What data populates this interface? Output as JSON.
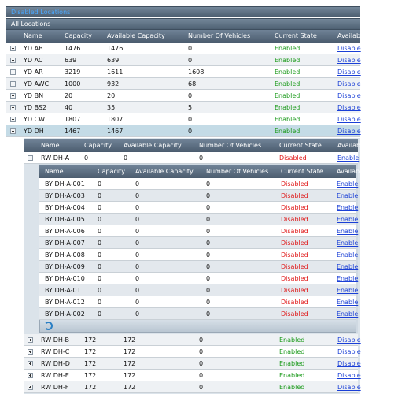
{
  "panels": {
    "disabled_locations": "Disabled Locations",
    "all_locations": "All Locations"
  },
  "locations_grid": {
    "columns": [
      "Name",
      "Capacity",
      "Available Capacity",
      "Number Of Vehicles",
      "Current State",
      "Available Action"
    ],
    "rows": [
      [
        "YD AB",
        1476,
        1476,
        0,
        "Enabled",
        "Disable"
      ],
      [
        "YD AC",
        639,
        639,
        0,
        "Enabled",
        "Disable"
      ],
      [
        "YD AR",
        3219,
        1611,
        1608,
        "Enabled",
        "Disable"
      ],
      [
        "YD AWC",
        1000,
        932,
        68,
        "Enabled",
        "Disable"
      ],
      [
        "YD BN",
        20,
        20,
        0,
        "Enabled",
        "Disable"
      ],
      [
        "YD BS2",
        40,
        35,
        5,
        "Enabled",
        "Disable"
      ],
      [
        "YD CW",
        1807,
        1807,
        0,
        "Enabled",
        "Disable"
      ],
      [
        "YD DH",
        1467,
        1467,
        0,
        "Enabled",
        "Disable"
      ]
    ]
  },
  "rows_grid": {
    "columns": [
      "Name",
      "Capacity",
      "Available Capacity",
      "Number Of Vehicles",
      "Current State",
      "Available Action"
    ],
    "rows": [
      [
        "RW DH-A",
        0,
        0,
        0,
        "Disabled",
        "Enable"
      ],
      [
        "RW DH-B",
        172,
        172,
        0,
        "Enabled",
        "Disable"
      ],
      [
        "RW DH-C",
        172,
        172,
        0,
        "Enabled",
        "Disable"
      ],
      [
        "RW DH-D",
        172,
        172,
        0,
        "Enabled",
        "Disable"
      ],
      [
        "RW DH-E",
        172,
        172,
        0,
        "Enabled",
        "Disable"
      ],
      [
        "RW DH-F",
        172,
        172,
        0,
        "Enabled",
        "Disable"
      ]
    ]
  },
  "bays_grid": {
    "columns": [
      "Name",
      "Capacity",
      "Available Capacity",
      "Number Of Vehicles",
      "Current State",
      "Available Action"
    ],
    "rows": [
      [
        "BY DH-A-001",
        0,
        0,
        0,
        "Disabled",
        "Enable"
      ],
      [
        "BY DH-A-003",
        0,
        0,
        0,
        "Disabled",
        "Enable"
      ],
      [
        "BY DH-A-004",
        0,
        0,
        0,
        "Disabled",
        "Enable"
      ],
      [
        "BY DH-A-005",
        0,
        0,
        0,
        "Disabled",
        "Enable"
      ],
      [
        "BY DH-A-006",
        0,
        0,
        0,
        "Disabled",
        "Enable"
      ],
      [
        "BY DH-A-007",
        0,
        0,
        0,
        "Disabled",
        "Enable"
      ],
      [
        "BY DH-A-008",
        0,
        0,
        0,
        "Disabled",
        "Enable"
      ],
      [
        "BY DH-A-009",
        0,
        0,
        0,
        "Disabled",
        "Enable"
      ],
      [
        "BY DH-A-010",
        0,
        0,
        0,
        "Disabled",
        "Enable"
      ],
      [
        "BY DH-A-011",
        0,
        0,
        0,
        "Disabled",
        "Enable"
      ],
      [
        "BY DH-A-012",
        0,
        0,
        0,
        "Disabled",
        "Enable"
      ],
      [
        "BY DH-A-002",
        0,
        0,
        0,
        "Disabled",
        "Enable"
      ]
    ]
  }
}
